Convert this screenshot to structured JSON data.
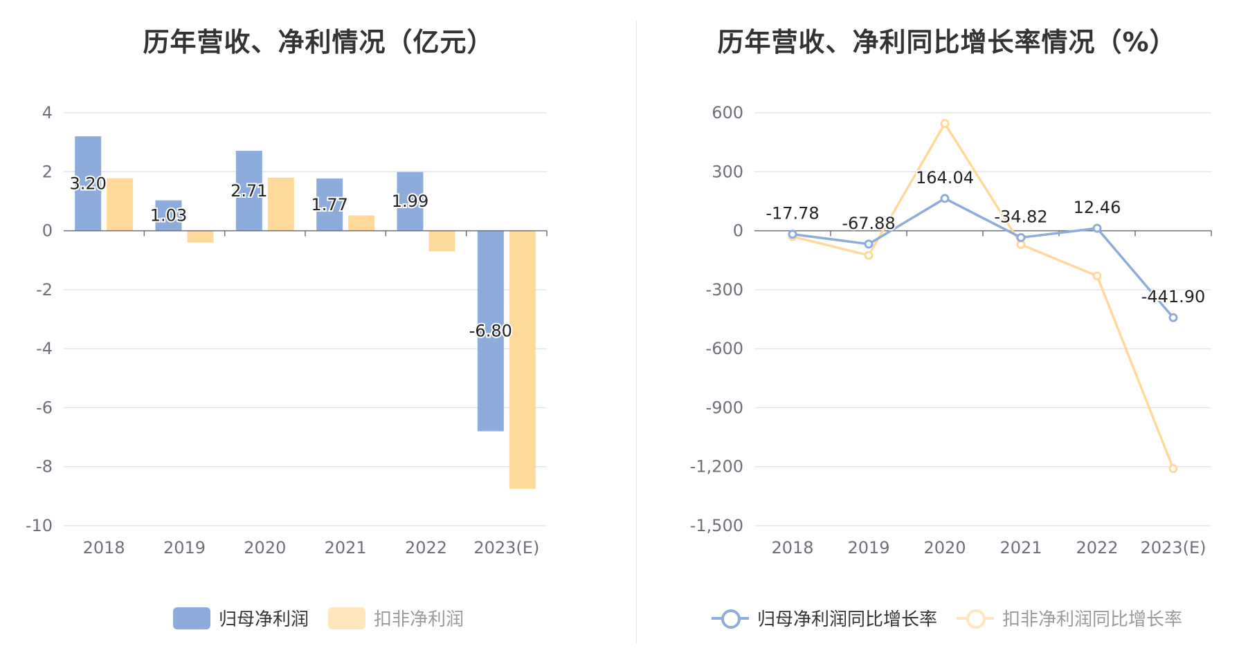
{
  "chart_data": [
    {
      "type": "bar",
      "title": "历年营收、净利情况（亿元）",
      "categories": [
        "2018",
        "2019",
        "2020",
        "2021",
        "2022",
        "2023(E)"
      ],
      "ylim": [
        -10,
        4
      ],
      "yticks": [
        4,
        2,
        0,
        -2,
        -4,
        -6,
        -8,
        -10
      ],
      "grid": true,
      "legend_position": "bottom",
      "series": [
        {
          "name": "归母净利润",
          "color": "#8eacdb",
          "values": [
            3.2,
            1.03,
            2.71,
            1.77,
            1.99,
            -6.8
          ],
          "labels": [
            "3.20",
            "1.03",
            "2.71",
            "1.77",
            "1.99",
            "-6.80"
          ]
        },
        {
          "name": "扣非净利润",
          "color": "#ffd99a",
          "values": [
            1.78,
            -0.4,
            1.8,
            0.52,
            -0.7,
            -8.75
          ]
        }
      ]
    },
    {
      "type": "line",
      "title": "历年营收、净利同比增长率情况（%）",
      "categories": [
        "2018",
        "2019",
        "2020",
        "2021",
        "2022",
        "2023(E)"
      ],
      "ylim": [
        -1500,
        600
      ],
      "yticks": [
        600,
        300,
        0,
        -300,
        -600,
        -900,
        -1200,
        -1500
      ],
      "ytick_labels": [
        "600",
        "300",
        "0",
        "-300",
        "-600",
        "-900",
        "-1,200",
        "-1,500"
      ],
      "grid": true,
      "legend_position": "bottom",
      "series": [
        {
          "name": "归母净利润同比增长率",
          "color": "#8eacdb",
          "values": [
            -17.78,
            -67.88,
            164.04,
            -34.82,
            12.46,
            -441.9
          ],
          "labels": [
            "-17.78",
            "-67.88",
            "164.04",
            "-34.82",
            "12.46",
            "-441.90"
          ]
        },
        {
          "name": "扣非净利润同比增长率",
          "color": "#ffd99a",
          "values": [
            -30,
            -125,
            545,
            -70,
            -230,
            -1210
          ]
        }
      ]
    }
  ]
}
